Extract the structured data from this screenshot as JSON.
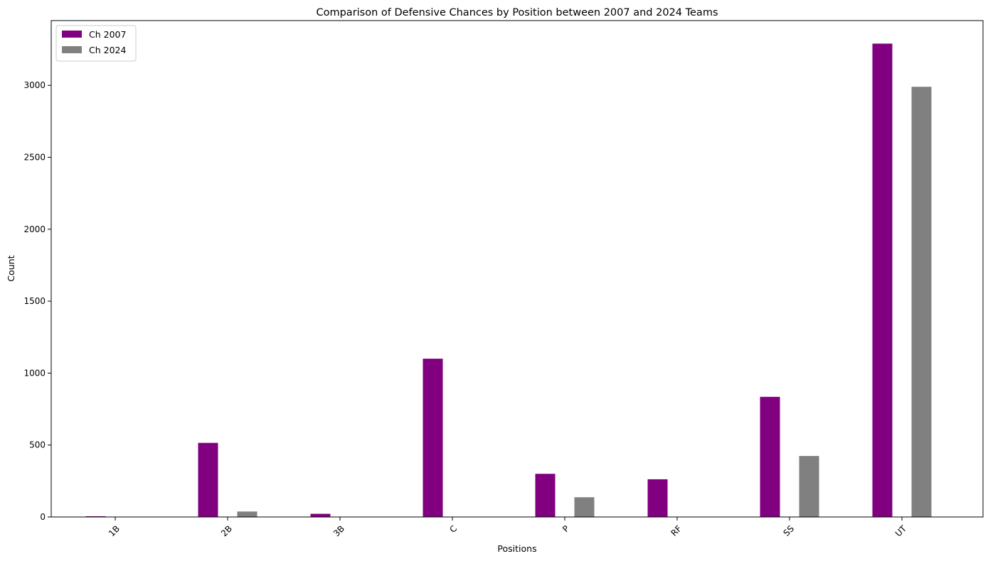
{
  "chart_data": {
    "type": "bar",
    "title": "Comparison of Defensive Chances by Position between 2007 and 2024 Teams",
    "xlabel": "Positions",
    "ylabel": "Count",
    "categories": [
      "1B",
      "2B",
      "3B",
      "C",
      "P",
      "RF",
      "SS",
      "UT"
    ],
    "series": [
      {
        "name": "Ch 2007",
        "color": "#800080",
        "values": [
          5,
          515,
          22,
          1100,
          300,
          262,
          835,
          3290
        ]
      },
      {
        "name": "Ch 2024",
        "color": "#808080",
        "values": [
          0,
          38,
          0,
          0,
          137,
          0,
          424,
          2990
        ]
      }
    ],
    "ylim": [
      0,
      3450
    ],
    "yticks": [
      0,
      500,
      1000,
      1500,
      2000,
      2500,
      3000
    ],
    "grid": false,
    "legend_position": "top-left"
  }
}
